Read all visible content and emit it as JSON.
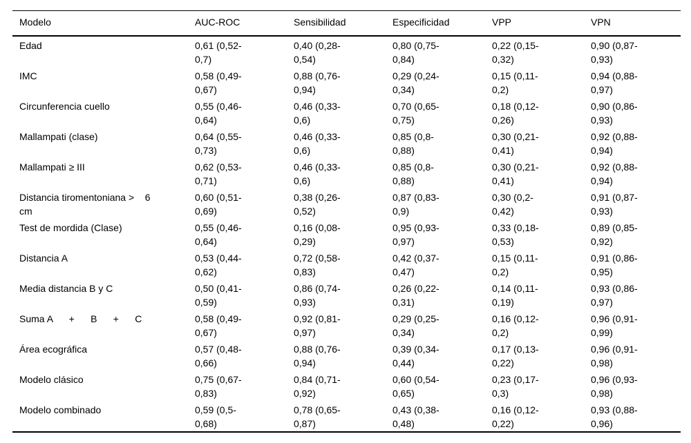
{
  "page": {
    "background_color": "#ffffff",
    "text_color": "#000000",
    "border_color": "#000000"
  },
  "table": {
    "columns": [
      {
        "key": "modelo",
        "label": "Modelo"
      },
      {
        "key": "auc_roc",
        "label": "AUC-ROC"
      },
      {
        "key": "sensibilidad",
        "label": "Sensibilidad"
      },
      {
        "key": "especificidad",
        "label": "Especificidad"
      },
      {
        "key": "vpp",
        "label": "VPP"
      },
      {
        "key": "vpn",
        "label": "VPN"
      }
    ],
    "rows": [
      {
        "modelo": "Edad",
        "auc_roc": "0,61 (0,52-0,7)",
        "sensibilidad": "0,40 (0,28-0,54)",
        "especificidad": "0,80 (0,75-0,84)",
        "vpp": "0,22 (0,15-0,32)",
        "vpn": "0,90 (0,87-0,93)"
      },
      {
        "modelo": "IMC",
        "auc_roc": "0,58 (0,49-0,67)",
        "sensibilidad": "0,88 (0,76-0,94)",
        "especificidad": "0,29 (0,24-0,34)",
        "vpp": "0,15 (0,11-0,2)",
        "vpn": "0,94 (0,88-0,97)"
      },
      {
        "modelo": "Circunferencia cuello",
        "auc_roc": "0,55 (0,46-0,64)",
        "sensibilidad": "0,46 (0,33-0,6)",
        "especificidad": "0,70 (0,65-0,75)",
        "vpp": "0,18 (0,12-0,26)",
        "vpn": "0,90 (0,86-0,93)"
      },
      {
        "modelo": "Mallampati (clase)",
        "auc_roc": "0,64 (0,55-0,73)",
        "sensibilidad": "0,46 (0,33-0,6)",
        "especificidad": "0,85 (0,8-0,88)",
        "vpp": "0,30 (0,21-0,41)",
        "vpn": "0,92 (0,88-0,94)"
      },
      {
        "modelo": "Mallampati ≥ III",
        "auc_roc": "0,62 (0,53-0,71)",
        "sensibilidad": "0,46 (0,33-0,6)",
        "especificidad": "0,85 (0,8-0,88)",
        "vpp": "0,30 (0,21-0,41)",
        "vpn": "0,92 (0,88-0,94)"
      },
      {
        "modelo": "Distancia tiromentoniana >    6\ncm",
        "auc_roc": "0,60 (0,51-0,69)",
        "sensibilidad": "0,38 (0,26-0,52)",
        "especificidad": "0,87 (0,83-0,9)",
        "vpp": "0,30 (0,2-0,42)",
        "vpn": "0,91 (0,87-0,93)"
      },
      {
        "modelo": "Test de mordida (Clase)",
        "auc_roc": "0,55 (0,46-0,64)",
        "sensibilidad": "0,16 (0,08-0,29)",
        "especificidad": "0,95 (0,93-0,97)",
        "vpp": "0,33 (0,18-0,53)",
        "vpn": "0,89 (0,85-0,92)"
      },
      {
        "modelo": "Distancia A",
        "auc_roc": "0,53 (0,44-0,62)",
        "sensibilidad": "0,72 (0,58-0,83)",
        "especificidad": "0,42 (0,37-0,47)",
        "vpp": "0,15 (0,11-0,2)",
        "vpn": "0,91 (0,86-0,95)"
      },
      {
        "modelo": "Media distancia B y C",
        "auc_roc": "0,50 (0,41-0,59)",
        "sensibilidad": "0,86 (0,74-0,93)",
        "especificidad": "0,26 (0,22-0,31)",
        "vpp": "0,14 (0,11-0,19)",
        "vpn": "0,93 (0,86-0,97)"
      },
      {
        "modelo": "Suma A      +      B      +      C",
        "auc_roc": "0,58 (0,49-0,67)",
        "sensibilidad": "0,92 (0,81-0,97)",
        "especificidad": "0,29 (0,25-0,34)",
        "vpp": "0,16 (0,12-0,2)",
        "vpn": "0,96 (0,91-0,99)"
      },
      {
        "modelo": "Área ecográfica",
        "auc_roc": "0,57 (0,48-0,66)",
        "sensibilidad": "0,88 (0,76-0,94)",
        "especificidad": "0,39 (0,34-0,44)",
        "vpp": "0,17 (0,13-0,22)",
        "vpn": "0,96 (0,91-0,98)"
      },
      {
        "modelo": "Modelo clásico",
        "auc_roc": "0,75 (0,67-0,83)",
        "sensibilidad": "0,84 (0,71-0,92)",
        "especificidad": "0,60 (0,54-0,65)",
        "vpp": "0,23 (0,17-0,3)",
        "vpn": "0,96 (0,93-0,98)"
      },
      {
        "modelo": "Modelo combinado",
        "auc_roc": "0,59 (0,5-0,68)",
        "sensibilidad": "0,78 (0,65-0,87)",
        "especificidad": "0,43 (0,38-0,48)",
        "vpp": "0,16 (0,12-0,22)",
        "vpn": "0,93 (0,88-0,96)"
      }
    ]
  }
}
